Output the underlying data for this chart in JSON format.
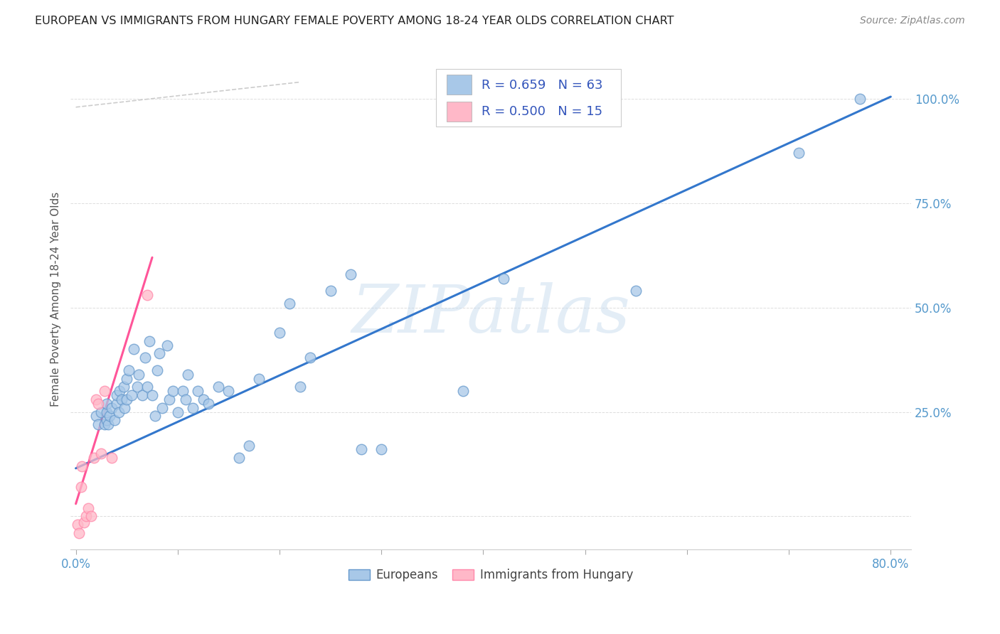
{
  "title": "EUROPEAN VS IMMIGRANTS FROM HUNGARY FEMALE POVERTY AMONG 18-24 YEAR OLDS CORRELATION CHART",
  "source": "Source: ZipAtlas.com",
  "ylabel": "Female Poverty Among 18-24 Year Olds",
  "xlim": [
    -0.005,
    0.82
  ],
  "ylim": [
    -0.08,
    1.12
  ],
  "xticks": [
    0.0,
    0.1,
    0.2,
    0.3,
    0.4,
    0.5,
    0.6,
    0.7,
    0.8
  ],
  "yticks": [
    0.0,
    0.25,
    0.5,
    0.75,
    1.0
  ],
  "R_blue": 0.659,
  "N_blue": 63,
  "R_pink": 0.5,
  "N_pink": 15,
  "blue_fill": "#A8C8E8",
  "blue_edge": "#6699CC",
  "pink_fill": "#FFB8C8",
  "pink_edge": "#FF88AA",
  "line_blue": "#3377CC",
  "line_pink": "#FF5599",
  "line_dashed_color": "#CCCCCC",
  "tick_color": "#5599CC",
  "ylabel_color": "#555555",
  "watermark_text": "ZIPatlas",
  "watermark_color": "#C8DCEF",
  "legend_blue": "Europeans",
  "legend_pink": "Immigrants from Hungary",
  "blue_x": [
    0.02,
    0.022,
    0.025,
    0.028,
    0.03,
    0.03,
    0.03,
    0.032,
    0.033,
    0.035,
    0.038,
    0.04,
    0.04,
    0.042,
    0.043,
    0.045,
    0.047,
    0.048,
    0.05,
    0.05,
    0.052,
    0.055,
    0.057,
    0.06,
    0.062,
    0.065,
    0.068,
    0.07,
    0.072,
    0.075,
    0.078,
    0.08,
    0.082,
    0.085,
    0.09,
    0.092,
    0.095,
    0.1,
    0.105,
    0.108,
    0.11,
    0.115,
    0.12,
    0.125,
    0.13,
    0.14,
    0.15,
    0.16,
    0.17,
    0.18,
    0.2,
    0.21,
    0.22,
    0.23,
    0.25,
    0.27,
    0.28,
    0.3,
    0.38,
    0.42,
    0.55,
    0.71,
    0.77
  ],
  "blue_y": [
    0.24,
    0.22,
    0.25,
    0.22,
    0.23,
    0.25,
    0.27,
    0.22,
    0.24,
    0.26,
    0.23,
    0.27,
    0.29,
    0.25,
    0.3,
    0.28,
    0.31,
    0.26,
    0.28,
    0.33,
    0.35,
    0.29,
    0.4,
    0.31,
    0.34,
    0.29,
    0.38,
    0.31,
    0.42,
    0.29,
    0.24,
    0.35,
    0.39,
    0.26,
    0.41,
    0.28,
    0.3,
    0.25,
    0.3,
    0.28,
    0.34,
    0.26,
    0.3,
    0.28,
    0.27,
    0.31,
    0.3,
    0.14,
    0.17,
    0.33,
    0.44,
    0.51,
    0.31,
    0.38,
    0.54,
    0.58,
    0.16,
    0.16,
    0.3,
    0.57,
    0.54,
    0.87,
    1.0
  ],
  "pink_x": [
    0.002,
    0.003,
    0.005,
    0.006,
    0.008,
    0.01,
    0.012,
    0.015,
    0.018,
    0.02,
    0.022,
    0.025,
    0.028,
    0.035,
    0.07
  ],
  "pink_y": [
    -0.02,
    -0.04,
    0.07,
    0.12,
    -0.015,
    0.0,
    0.02,
    0.0,
    0.14,
    0.28,
    0.27,
    0.15,
    0.3,
    0.14,
    0.53
  ],
  "blue_line_x": [
    0.0,
    0.8
  ],
  "blue_line_y": [
    0.115,
    1.005
  ],
  "pink_line_x": [
    0.0,
    0.075
  ],
  "pink_line_y": [
    0.03,
    0.62
  ],
  "dashed_line_x": [
    0.02,
    0.205
  ],
  "dashed_line_y": [
    1.02,
    1.02
  ]
}
